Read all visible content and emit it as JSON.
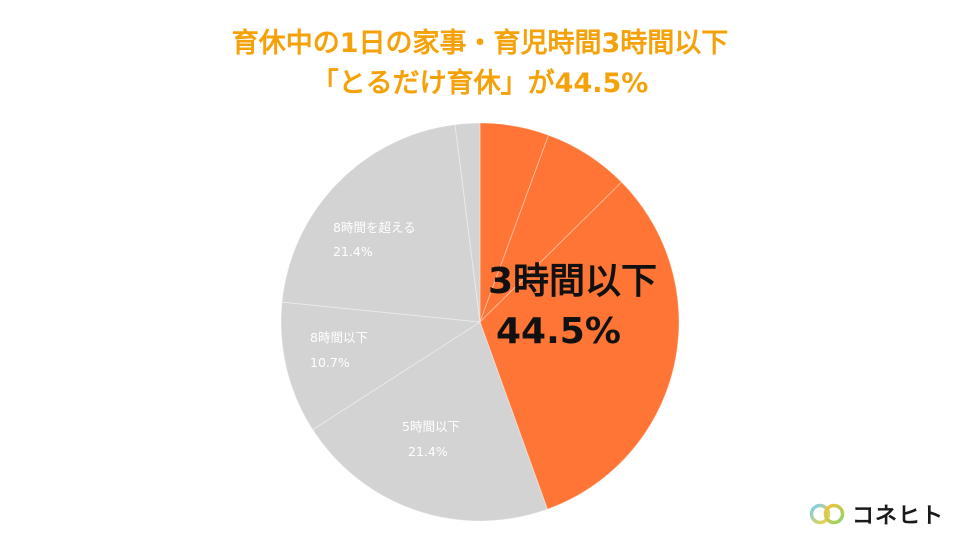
{
  "title": {
    "line1": "育休中の1日の家事・育児時間3時間以下",
    "line2": "「とるだけ育休」が44.5%"
  },
  "brand": {
    "name": "コネヒト"
  },
  "chart_data": {
    "type": "pie",
    "title": "育休中の1日の家事・育児時間3時間以下「とるだけ育休」が44.5%",
    "slices": [
      {
        "label": "",
        "value": 5.6,
        "value_label": "",
        "color": "#ff7535"
      },
      {
        "label": "",
        "value": 7.0,
        "value_label": "",
        "color": "#ff7535"
      },
      {
        "label": "",
        "value": 31.9,
        "value_label": "",
        "color": "#ff7535"
      },
      {
        "label": "5時間以下",
        "value": 21.4,
        "value_label": "21.4%",
        "color": "#d3d3d3"
      },
      {
        "label": "8時間以下",
        "value": 10.7,
        "value_label": "10.7%",
        "color": "#d3d3d3"
      },
      {
        "label": "8時間を超える",
        "value": 21.4,
        "value_label": "21.4%",
        "color": "#d3d3d3"
      },
      {
        "label": "",
        "value": 2.0,
        "value_label": "",
        "color": "#d3d3d3"
      }
    ],
    "group_annotation": {
      "label": "3時間以下",
      "value_label": "44.5%",
      "value": 44.5
    },
    "start_angle": "top",
    "direction": "clockwise"
  }
}
